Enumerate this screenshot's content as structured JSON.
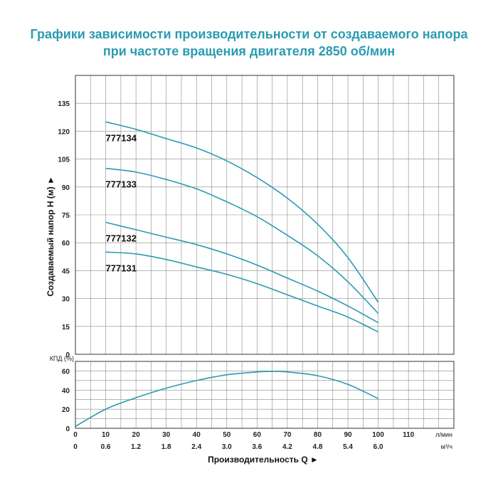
{
  "title_line1": "Графики зависимости производительности от создаваемого напора",
  "title_line2": "при частоте вращения двигателя 2850 об/мин",
  "chart_data": [
    {
      "type": "line",
      "ylabel": "Создаваемый напор H (м) ►",
      "xlabel": "Производительность Q ►",
      "x_unit_lmin": "л/мин",
      "x_unit_m3h": "м³/ч",
      "xlim": [
        0,
        125
      ],
      "ylim": [
        0,
        150
      ],
      "y_ticks": [
        0,
        15,
        30,
        45,
        60,
        75,
        90,
        105,
        120,
        135
      ],
      "x_ticks_lmin": [
        0,
        10,
        20,
        30,
        40,
        50,
        60,
        70,
        80,
        90,
        100,
        110
      ],
      "x_ticks_m3h": [
        "0",
        "0.6",
        "1.2",
        "1.8",
        "2.4",
        "3.0",
        "3.6",
        "4.2",
        "4.8",
        "5.4",
        "6.0"
      ],
      "grid": true,
      "series": [
        {
          "name": "777134",
          "x": [
            10,
            20,
            30,
            40,
            50,
            60,
            70,
            80,
            90,
            100
          ],
          "y": [
            125,
            121,
            116,
            111,
            104,
            95,
            84,
            70,
            52,
            28
          ]
        },
        {
          "name": "777133",
          "x": [
            10,
            20,
            30,
            40,
            50,
            60,
            70,
            80,
            90,
            100
          ],
          "y": [
            100,
            98,
            94,
            89,
            82,
            74,
            64,
            53,
            39,
            22
          ]
        },
        {
          "name": "777132",
          "x": [
            10,
            20,
            30,
            40,
            50,
            60,
            70,
            80,
            90,
            100
          ],
          "y": [
            71,
            67,
            63,
            59,
            54,
            48,
            41,
            34,
            26,
            17
          ]
        },
        {
          "name": "777131",
          "x": [
            10,
            20,
            30,
            40,
            50,
            60,
            70,
            80,
            90,
            100
          ],
          "y": [
            55,
            54,
            51,
            47,
            43,
            38,
            32,
            26,
            20,
            12
          ]
        }
      ]
    },
    {
      "type": "line",
      "ylabel": "КПД (%)",
      "ylim": [
        0,
        70
      ],
      "y_ticks": [
        0,
        20,
        40,
        60
      ],
      "xlim": [
        0,
        125
      ],
      "grid": true,
      "series": [
        {
          "name": "",
          "x": [
            0,
            10,
            20,
            30,
            40,
            50,
            60,
            65,
            70,
            80,
            90,
            100
          ],
          "y": [
            2,
            20,
            32,
            42,
            50,
            56,
            59,
            59.5,
            59,
            55,
            46,
            31
          ]
        }
      ]
    }
  ],
  "colors": {
    "curve": "#2a9bb2",
    "title": "#2a9bb2",
    "grid": "#8a8a8a"
  }
}
